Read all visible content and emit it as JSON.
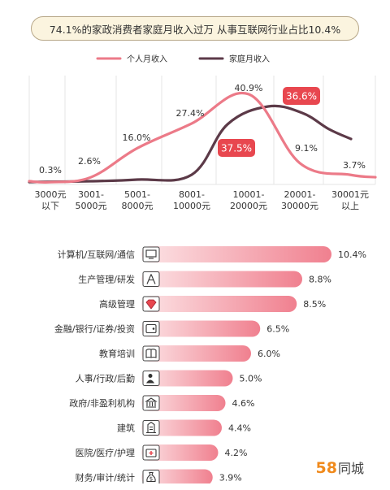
{
  "title": "74.1%的家政消费者家庭月收入过万 从事互联网行业占比10.4%",
  "colors": {
    "personal": "#ec7a88",
    "household": "#5c3a48",
    "badge": "#e8474f",
    "bar_start": "#fce4e6",
    "bar_end": "#f0808f"
  },
  "logo": {
    "num": "58",
    "text": "同城"
  },
  "chart_data": [
    {
      "type": "line",
      "legend": [
        "个人月收入",
        "家庭月收入"
      ],
      "legend_position": "top-center",
      "categories": [
        [
          "3000元",
          "以下"
        ],
        [
          "3001-",
          "5000元"
        ],
        [
          "5001-",
          "8000元"
        ],
        [
          "8001-",
          "10000元"
        ],
        [
          "10001-",
          "20000元"
        ],
        [
          "20001-",
          "30000元"
        ],
        [
          "30001元",
          "以上"
        ]
      ],
      "series": [
        {
          "name": "个人月收入",
          "values": [
            0.3,
            2.6,
            16.0,
            27.4,
            40.9,
            9.1,
            3.7
          ],
          "labels": [
            "0.3%",
            "2.6%",
            "16.0%",
            "27.4%",
            "40.9%",
            "9.1%",
            "3.7%"
          ]
        },
        {
          "name": "家庭月收入",
          "badges": {
            "4": "37.5%",
            "5": "36.6%"
          }
        }
      ],
      "grid": "vertical"
    },
    {
      "type": "bar",
      "orientation": "horizontal",
      "categories": [
        "计算机/互联网/通信",
        "生产管理/研发",
        "高级管理",
        "金融/银行/证券/投资",
        "教育培训",
        "人事/行政/后勤",
        "政府/非盈利机构",
        "建筑",
        "医院/医疗/护理",
        "财务/审计/统计"
      ],
      "icons": [
        "computer-icon",
        "compass-icon",
        "diamond-icon",
        "wallet-icon",
        "book-icon",
        "person-icon",
        "government-icon",
        "building-icon",
        "medical-kit-icon",
        "money-bag-icon"
      ],
      "values": [
        10.4,
        8.8,
        8.5,
        6.5,
        6.0,
        5.0,
        4.6,
        4.4,
        4.2,
        3.9
      ],
      "labels": [
        "10.4%",
        "8.8%",
        "8.5%",
        "6.5%",
        "6.0%",
        "5.0%",
        "4.6%",
        "4.4%",
        "4.2%",
        "3.9%"
      ]
    }
  ]
}
